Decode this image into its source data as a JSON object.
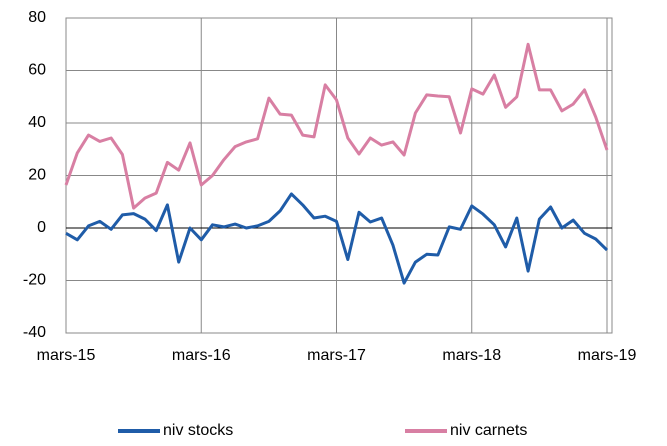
{
  "chart_data": {
    "type": "line",
    "categories": [
      "mars-15",
      null,
      null,
      null,
      null,
      null,
      null,
      null,
      null,
      null,
      null,
      null,
      "mars-16",
      null,
      null,
      null,
      null,
      null,
      null,
      null,
      null,
      null,
      null,
      null,
      "mars-17",
      null,
      null,
      null,
      null,
      null,
      null,
      null,
      null,
      null,
      null,
      null,
      "mars-18",
      null,
      null,
      null,
      null,
      null,
      null,
      null,
      null,
      null,
      null,
      null,
      "mars-19"
    ],
    "series": [
      {
        "name": "niv stocks",
        "color": "#1f5ca8",
        "values": [
          -2,
          -4.5,
          0.8,
          2.5,
          -0.5,
          5,
          5.5,
          3.4,
          -1,
          8.8,
          -13,
          0,
          -4.5,
          1.2,
          0.4,
          1.5,
          0,
          0.8,
          2.5,
          6.5,
          13,
          8.8,
          3.8,
          4.5,
          2.5,
          -12,
          6,
          2.3,
          3.8,
          -6.5,
          -21,
          -13,
          -10,
          -10.3,
          0.4,
          -0.5,
          8.4,
          5.3,
          1.2,
          -7.2,
          3.8,
          -16.4,
          3.4,
          8,
          0,
          3,
          -2,
          -4.2,
          -8.4
        ]
      },
      {
        "name": "niv carnets",
        "color": "#d87fa3",
        "values": [
          16.4,
          28.6,
          35.4,
          33,
          34.3,
          28,
          7.6,
          11.4,
          13.3,
          25,
          22,
          32.4,
          16.4,
          20,
          26,
          31,
          32.8,
          34,
          49.5,
          43.4,
          43,
          35.4,
          34.7,
          54.5,
          48.8,
          34.3,
          28.2,
          34.3,
          31.6,
          32.8,
          27.8,
          43.8,
          50.7,
          50.3,
          50,
          36.2,
          53,
          51,
          58.3,
          46,
          50,
          70,
          52.6,
          52.6,
          44.6,
          47.2,
          52.6,
          42.3,
          29.7
        ]
      }
    ],
    "ylim": [
      -40,
      80
    ],
    "yticks": [
      -40,
      -20,
      0,
      20,
      40,
      60,
      80
    ],
    "grid": true,
    "legend": "bottom"
  }
}
